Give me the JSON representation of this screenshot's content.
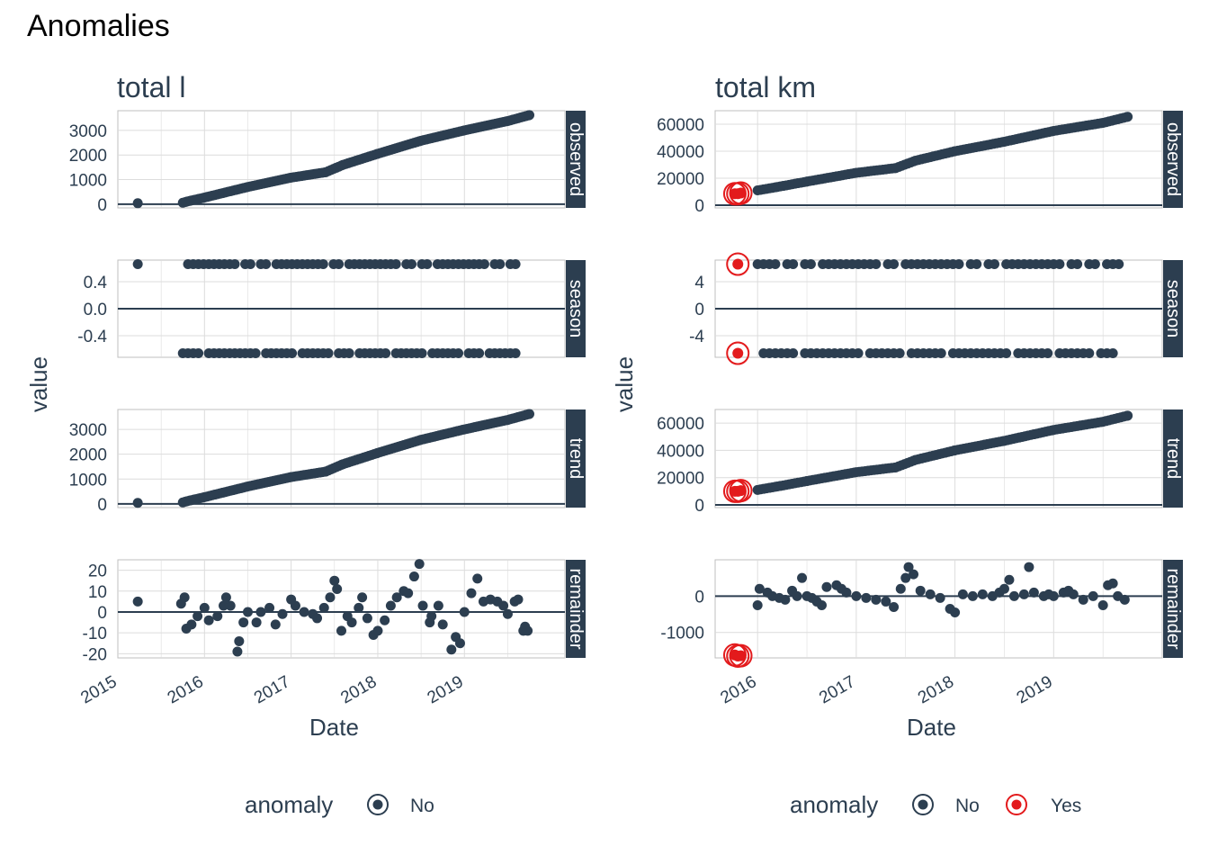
{
  "figure_title": "Anomalies",
  "colors": {
    "no": "#2c3e50",
    "yes": "#e31a1c",
    "grid": "#dcdcdc",
    "strip_bg": "#2c3e50",
    "zero_line": "#2c3e50"
  },
  "chart_data": [
    {
      "type": "scatter",
      "title": "total l",
      "xlabel": "Date",
      "ylabel": "value",
      "x_ticks": [
        "2015",
        "2016",
        "2017",
        "2018",
        "2019"
      ],
      "x_range": [
        2015.0,
        2020.16
      ],
      "legend": {
        "title": "anomaly",
        "items": [
          "No"
        ],
        "placement": "bottom"
      },
      "panels": [
        {
          "name": "observed",
          "ylim": [
            -150,
            3800
          ],
          "ticks": [
            0,
            1000,
            2000,
            3000
          ],
          "tick_labels": [
            "0",
            "1000",
            "2000",
            "3000"
          ],
          "points": [
            [
              2015.23,
              40
            ],
            [
              2015.75,
              60
            ],
            [
              2015.8,
              110
            ],
            [
              2015.85,
              150
            ],
            [
              2015.9,
              190
            ],
            [
              2015.95,
              230
            ],
            [
              2016.0,
              270
            ],
            [
              2016.5,
              700
            ],
            [
              2017.0,
              1080
            ],
            [
              2017.4,
              1300
            ],
            [
              2017.6,
              1600
            ],
            [
              2018.0,
              2050
            ],
            [
              2018.5,
              2580
            ],
            [
              2019.0,
              3000
            ],
            [
              2019.5,
              3380
            ],
            [
              2019.75,
              3620
            ]
          ],
          "anomalies": []
        },
        {
          "name": "season",
          "ylim": [
            -0.72,
            0.72
          ],
          "ticks": [
            -0.4,
            0,
            0.4
          ],
          "tick_labels": [
            "-0.4",
            "0.0",
            "0.4"
          ],
          "points": [
            [
              2015.23,
              0.66
            ],
            [
              2015.75,
              0.66
            ],
            [
              2015.75,
              -0.66
            ],
            [
              2016.5,
              0.66
            ],
            [
              2016.5,
              -0.66
            ],
            [
              2017.0,
              0.66
            ],
            [
              2017.0,
              -0.66
            ],
            [
              2017.5,
              0.66
            ],
            [
              2017.5,
              -0.66
            ],
            [
              2018.0,
              0.66
            ],
            [
              2018.0,
              -0.66
            ],
            [
              2018.5,
              0.66
            ],
            [
              2018.5,
              -0.66
            ],
            [
              2019.0,
              0.66
            ],
            [
              2019.0,
              -0.66
            ],
            [
              2019.7,
              0.66
            ],
            [
              2019.7,
              -0.66
            ]
          ],
          "anomalies": []
        },
        {
          "name": "trend",
          "ylim": [
            -150,
            3800
          ],
          "ticks": [
            0,
            1000,
            2000,
            3000
          ],
          "tick_labels": [
            "0",
            "1000",
            "2000",
            "3000"
          ],
          "points": [
            [
              2015.23,
              40
            ],
            [
              2015.75,
              60
            ],
            [
              2015.8,
              110
            ],
            [
              2015.85,
              150
            ],
            [
              2015.9,
              190
            ],
            [
              2015.95,
              230
            ],
            [
              2016.0,
              270
            ],
            [
              2016.5,
              700
            ],
            [
              2017.0,
              1080
            ],
            [
              2017.4,
              1300
            ],
            [
              2017.6,
              1600
            ],
            [
              2018.0,
              2050
            ],
            [
              2018.5,
              2580
            ],
            [
              2019.0,
              3000
            ],
            [
              2019.5,
              3380
            ],
            [
              2019.75,
              3620
            ]
          ],
          "anomalies": []
        },
        {
          "name": "remainder",
          "ylim": [
            -22,
            25
          ],
          "ticks": [
            -20,
            -10,
            0,
            10,
            20
          ],
          "tick_labels": [
            "-20",
            "-10",
            "0",
            "10",
            "20"
          ],
          "points": [
            [
              2015.23,
              5
            ],
            [
              2015.73,
              4
            ],
            [
              2015.77,
              7
            ],
            [
              2015.79,
              -8
            ],
            [
              2015.85,
              -6
            ],
            [
              2015.92,
              -2
            ],
            [
              2016.0,
              2
            ],
            [
              2016.05,
              -4
            ],
            [
              2016.15,
              -2
            ],
            [
              2016.22,
              3
            ],
            [
              2016.25,
              7
            ],
            [
              2016.3,
              3
            ],
            [
              2016.38,
              -19
            ],
            [
              2016.4,
              -14
            ],
            [
              2016.45,
              -5
            ],
            [
              2016.5,
              0
            ],
            [
              2016.6,
              -5
            ],
            [
              2016.65,
              0
            ],
            [
              2016.75,
              2
            ],
            [
              2016.82,
              -6
            ],
            [
              2016.9,
              -1
            ],
            [
              2017.0,
              6
            ],
            [
              2017.05,
              3
            ],
            [
              2017.15,
              0
            ],
            [
              2017.25,
              -1
            ],
            [
              2017.3,
              -3
            ],
            [
              2017.38,
              2
            ],
            [
              2017.45,
              7
            ],
            [
              2017.5,
              15
            ],
            [
              2017.53,
              11
            ],
            [
              2017.58,
              -9
            ],
            [
              2017.65,
              -2
            ],
            [
              2017.7,
              -5
            ],
            [
              2017.78,
              2
            ],
            [
              2017.82,
              7
            ],
            [
              2017.88,
              -3
            ],
            [
              2017.95,
              -11
            ],
            [
              2018.0,
              -9
            ],
            [
              2018.08,
              -4
            ],
            [
              2018.15,
              3
            ],
            [
              2018.22,
              7
            ],
            [
              2018.3,
              10
            ],
            [
              2018.35,
              9
            ],
            [
              2018.42,
              17
            ],
            [
              2018.48,
              23
            ],
            [
              2018.52,
              3
            ],
            [
              2018.6,
              -5
            ],
            [
              2018.62,
              -2
            ],
            [
              2018.7,
              3
            ],
            [
              2018.75,
              -6
            ],
            [
              2018.85,
              -18
            ],
            [
              2018.9,
              -12
            ],
            [
              2018.95,
              -15
            ],
            [
              2019.0,
              0
            ],
            [
              2019.08,
              9
            ],
            [
              2019.15,
              16
            ],
            [
              2019.22,
              5
            ],
            [
              2019.3,
              6
            ],
            [
              2019.38,
              5
            ],
            [
              2019.45,
              3
            ],
            [
              2019.5,
              -1
            ],
            [
              2019.58,
              5
            ],
            [
              2019.62,
              6
            ],
            [
              2019.68,
              -9
            ],
            [
              2019.7,
              -7
            ],
            [
              2019.73,
              -9
            ]
          ],
          "anomalies": []
        }
      ]
    },
    {
      "type": "scatter",
      "title": "total km",
      "xlabel": "Date",
      "ylabel": "value",
      "x_ticks": [
        "2016",
        "2017",
        "2018",
        "2019"
      ],
      "x_range": [
        2015.57,
        2020.1
      ],
      "legend": {
        "title": "anomaly",
        "items": [
          "No",
          "Yes"
        ],
        "placement": "bottom"
      },
      "panels": [
        {
          "name": "observed",
          "ylim": [
            -2000,
            70000
          ],
          "ticks": [
            0,
            20000,
            40000,
            60000
          ],
          "tick_labels": [
            "0",
            "20000",
            "40000",
            "60000"
          ],
          "points": [
            [
              2016.0,
              11000
            ],
            [
              2016.2,
              13500
            ],
            [
              2016.5,
              17500
            ],
            [
              2017.0,
              24000
            ],
            [
              2017.4,
              27500
            ],
            [
              2017.6,
              33000
            ],
            [
              2018.0,
              40000
            ],
            [
              2018.5,
              47000
            ],
            [
              2019.0,
              55000
            ],
            [
              2019.5,
              61000
            ],
            [
              2019.75,
              65500
            ]
          ],
          "anomalies": [
            [
              2015.77,
              8500
            ],
            [
              2015.8,
              8500
            ],
            [
              2015.83,
              9000
            ]
          ]
        },
        {
          "name": "season",
          "ylim": [
            -7.2,
            7.2
          ],
          "ticks": [
            -4,
            0,
            4
          ],
          "tick_labels": [
            "-4",
            "0",
            "4"
          ],
          "points": [
            [
              2016.0,
              6.6
            ],
            [
              2016.0,
              -6.6
            ],
            [
              2016.5,
              6.6
            ],
            [
              2016.5,
              -6.6
            ],
            [
              2017.0,
              6.6
            ],
            [
              2017.0,
              -6.6
            ],
            [
              2017.5,
              6.6
            ],
            [
              2017.5,
              -6.6
            ],
            [
              2018.0,
              6.6
            ],
            [
              2018.0,
              -6.6
            ],
            [
              2018.5,
              6.6
            ],
            [
              2018.5,
              -6.6
            ],
            [
              2019.0,
              6.6
            ],
            [
              2019.0,
              -6.6
            ],
            [
              2019.7,
              6.6
            ],
            [
              2019.7,
              -6.6
            ]
          ],
          "anomalies": [
            [
              2015.8,
              6.6
            ],
            [
              2015.8,
              -6.6
            ]
          ]
        },
        {
          "name": "trend",
          "ylim": [
            -2000,
            70000
          ],
          "ticks": [
            0,
            20000,
            40000,
            60000
          ],
          "tick_labels": [
            "0",
            "20000",
            "40000",
            "60000"
          ],
          "points": [
            [
              2016.0,
              11000
            ],
            [
              2016.2,
              13500
            ],
            [
              2016.5,
              17500
            ],
            [
              2017.0,
              24000
            ],
            [
              2017.4,
              27500
            ],
            [
              2017.6,
              33000
            ],
            [
              2018.0,
              40000
            ],
            [
              2018.5,
              47000
            ],
            [
              2019.0,
              55000
            ],
            [
              2019.5,
              61000
            ],
            [
              2019.75,
              65500
            ]
          ],
          "anomalies": [
            [
              2015.77,
              10000
            ],
            [
              2015.8,
              10000
            ],
            [
              2015.83,
              10500
            ]
          ]
        },
        {
          "name": "remainder",
          "ylim": [
            -1700,
            1000
          ],
          "ticks": [
            -1000,
            0
          ],
          "tick_labels": [
            "-1000",
            "0"
          ],
          "points": [
            [
              2016.0,
              -250
            ],
            [
              2016.02,
              200
            ],
            [
              2016.1,
              100
            ],
            [
              2016.15,
              0
            ],
            [
              2016.22,
              -50
            ],
            [
              2016.28,
              -100
            ],
            [
              2016.35,
              150
            ],
            [
              2016.4,
              0
            ],
            [
              2016.45,
              500
            ],
            [
              2016.5,
              0
            ],
            [
              2016.55,
              -50
            ],
            [
              2016.6,
              -150
            ],
            [
              2016.65,
              -250
            ],
            [
              2016.7,
              250
            ],
            [
              2016.8,
              300
            ],
            [
              2016.85,
              200
            ],
            [
              2016.9,
              100
            ],
            [
              2017.0,
              0
            ],
            [
              2017.1,
              -50
            ],
            [
              2017.2,
              -100
            ],
            [
              2017.3,
              -150
            ],
            [
              2017.38,
              -300
            ],
            [
              2017.45,
              200
            ],
            [
              2017.5,
              500
            ],
            [
              2017.53,
              800
            ],
            [
              2017.58,
              600
            ],
            [
              2017.65,
              150
            ],
            [
              2017.75,
              50
            ],
            [
              2017.85,
              -50
            ],
            [
              2017.95,
              -350
            ],
            [
              2018.0,
              -450
            ],
            [
              2018.08,
              50
            ],
            [
              2018.18,
              0
            ],
            [
              2018.28,
              50
            ],
            [
              2018.38,
              0
            ],
            [
              2018.45,
              100
            ],
            [
              2018.5,
              200
            ],
            [
              2018.55,
              450
            ],
            [
              2018.6,
              0
            ],
            [
              2018.7,
              50
            ],
            [
              2018.75,
              800
            ],
            [
              2018.8,
              100
            ],
            [
              2018.9,
              0
            ],
            [
              2018.95,
              50
            ],
            [
              2019.0,
              0
            ],
            [
              2019.1,
              100
            ],
            [
              2019.15,
              150
            ],
            [
              2019.2,
              50
            ],
            [
              2019.3,
              -100
            ],
            [
              2019.4,
              0
            ],
            [
              2019.5,
              -250
            ],
            [
              2019.55,
              300
            ],
            [
              2019.6,
              350
            ],
            [
              2019.65,
              0
            ],
            [
              2019.72,
              -100
            ]
          ],
          "anomalies": [
            [
              2015.77,
              -1620
            ],
            [
              2015.8,
              -1650
            ],
            [
              2015.83,
              -1640
            ]
          ]
        }
      ]
    }
  ]
}
